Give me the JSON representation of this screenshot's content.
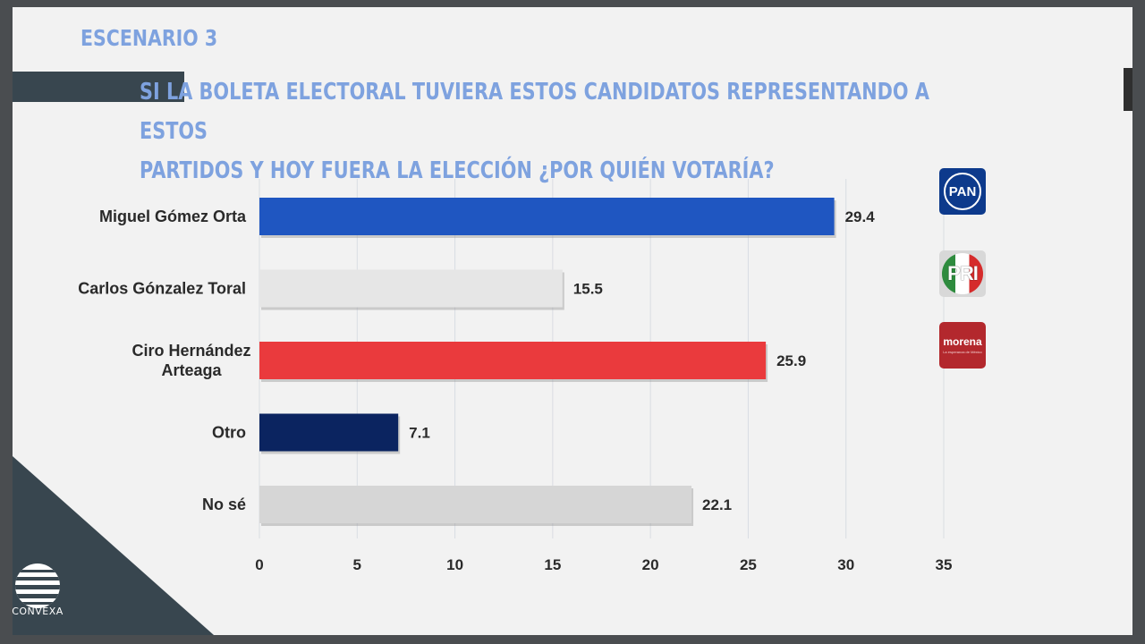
{
  "slide": {
    "scenario": "ESCENARIO 3",
    "question_line1": "SI LA BOLETA ELECTORAL TUVIERA ESTOS CANDIDATOS REPRESENTANDO A ESTOS",
    "question_line2": "PARTIDOS Y HOY FUERA LA ELECCIÓN ¿POR QUIÉN VOTARÍA?",
    "brand": "CONVEXA",
    "party_logos": [
      {
        "name": "PAN",
        "text": "PAN",
        "color": "#0d3a8c"
      },
      {
        "name": "PRI",
        "text": "PRI",
        "color": "#d52b2b"
      },
      {
        "name": "morena",
        "text": "morena",
        "sub": "La esperanza de México",
        "color": "#b3282d"
      }
    ],
    "accent_color": "#7ea2df",
    "dark_color": "#38464f"
  },
  "chart_data": {
    "type": "bar",
    "orientation": "horizontal",
    "categories": [
      "Miguel Gómez Orta",
      "Carlos Gónzalez Toral",
      "Ciro Hernández Arteaga",
      "Otro",
      "No sé"
    ],
    "category_lines": [
      [
        "Miguel Gómez Orta"
      ],
      [
        "Carlos Gónzalez Toral"
      ],
      [
        "Ciro Hernández",
        "Arteaga"
      ],
      [
        "Otro"
      ],
      [
        "No sé"
      ]
    ],
    "values": [
      29.4,
      15.5,
      25.9,
      7.1,
      22.1
    ],
    "value_labels": [
      "29.4",
      "15.5",
      "25.9",
      "7.1",
      "22.1"
    ],
    "bar_colors": [
      "#1f56c1",
      "#e6e6e6",
      "#ea3a3d",
      "#0b2460",
      "#d6d6d6"
    ],
    "xlim": [
      0,
      35
    ],
    "xticks": [
      0,
      5,
      10,
      15,
      20,
      25,
      30,
      35
    ],
    "grid": true,
    "title": "",
    "xlabel": "",
    "ylabel": ""
  }
}
